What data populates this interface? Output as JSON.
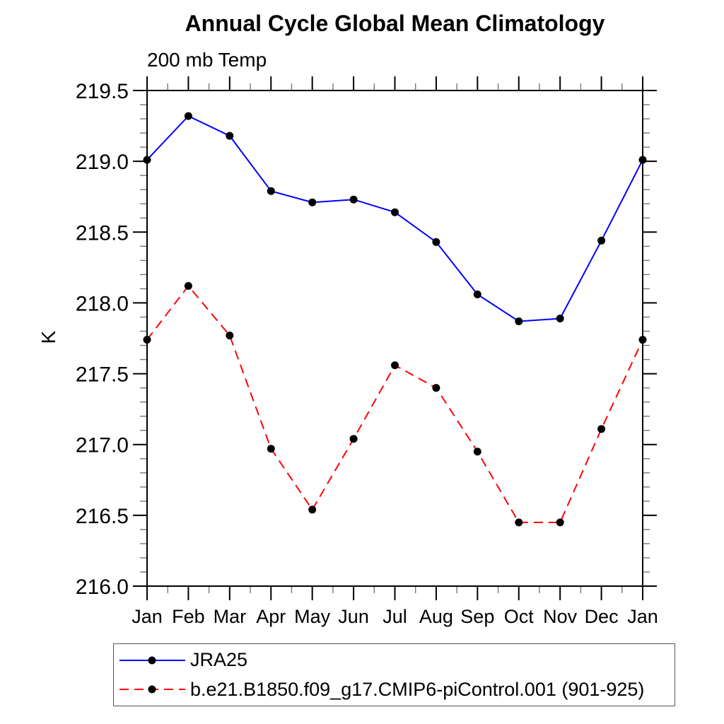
{
  "title": "Annual Cycle Global Mean Climatology",
  "subtitle": "200 mb Temp",
  "y_axis_label": "K",
  "colors": {
    "series1": "#0000ff",
    "series2": "#ff0000",
    "marker": "#000000",
    "axis": "#000000",
    "minor_tick": "#777777"
  },
  "chart_data": {
    "type": "line",
    "title": "Annual Cycle Global Mean Climatology",
    "subtitle": "200 mb Temp",
    "xlabel": "",
    "ylabel": "K",
    "x_categories": [
      "Jan",
      "Feb",
      "Mar",
      "Apr",
      "May",
      "Jun",
      "Jul",
      "Aug",
      "Sep",
      "Oct",
      "Nov",
      "Dec",
      "Jan"
    ],
    "ylim": [
      216.0,
      219.5
    ],
    "ytick_step": 0.5,
    "yminor_step": 0.1,
    "ytick_labels": [
      "216.0",
      "216.5",
      "217.0",
      "217.5",
      "218.0",
      "218.5",
      "219.0",
      "219.5"
    ],
    "grid": false,
    "legend_position": "bottom-left",
    "series": [
      {
        "name": "JRA25",
        "color": "#0000ff",
        "line_style": "solid",
        "marker": "filled-circle",
        "marker_color": "#000000",
        "values": [
          219.01,
          219.32,
          219.18,
          218.79,
          218.71,
          218.73,
          218.64,
          218.43,
          218.06,
          217.87,
          217.89,
          218.44,
          219.01
        ]
      },
      {
        "name": "b.e21.B1850.f09_g17.CMIP6-piControl.001 (901-925)",
        "color": "#ff0000",
        "line_style": "dashed",
        "marker": "filled-circle",
        "marker_color": "#000000",
        "values": [
          217.74,
          218.12,
          217.77,
          216.97,
          216.54,
          217.04,
          217.56,
          217.4,
          216.95,
          216.45,
          216.45,
          217.11,
          217.74
        ]
      }
    ]
  }
}
